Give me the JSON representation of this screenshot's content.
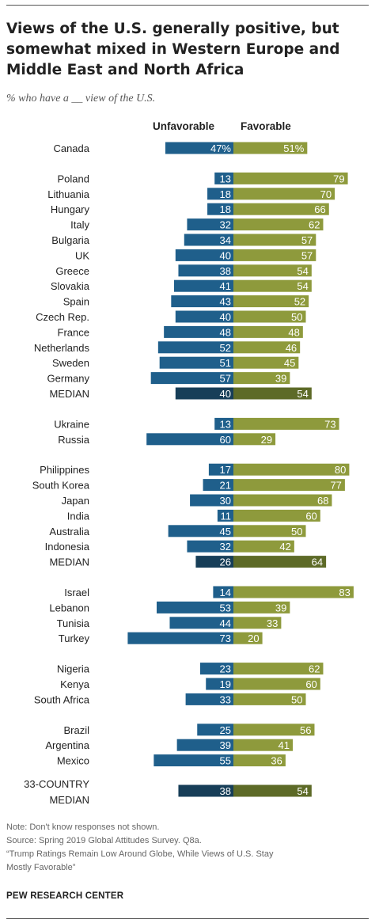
{
  "title": "Views of the U.S. generally positive, but somewhat mixed in Western Europe and Middle East and North Africa",
  "subtitle": "% who have a __ view of the U.S.",
  "legend": {
    "unfavorable": "Unfavorable",
    "favorable": "Favorable"
  },
  "colors": {
    "unfavorable": "#1f5f8b",
    "favorable": "#8e9a3c",
    "unfavorable_median": "#173e58",
    "favorable_median": "#5d6a27"
  },
  "chart_data": {
    "type": "bar",
    "orientation": "horizontal-diverging",
    "series": [
      {
        "name": "Unfavorable",
        "values": [
          47,
          13,
          18,
          18,
          32,
          34,
          40,
          38,
          41,
          43,
          40,
          48,
          52,
          51,
          57,
          40,
          13,
          60,
          17,
          21,
          30,
          11,
          45,
          32,
          26,
          14,
          53,
          44,
          73,
          23,
          19,
          33,
          25,
          39,
          55,
          38
        ]
      },
      {
        "name": "Favorable",
        "values": [
          51,
          79,
          70,
          66,
          62,
          57,
          57,
          54,
          54,
          52,
          50,
          48,
          46,
          45,
          39,
          54,
          73,
          29,
          80,
          77,
          68,
          60,
          50,
          42,
          64,
          83,
          39,
          33,
          20,
          62,
          60,
          50,
          56,
          41,
          36,
          54
        ]
      }
    ],
    "categories": [
      "Canada",
      "Poland",
      "Lithuania",
      "Hungary",
      "Italy",
      "Bulgaria",
      "UK",
      "Greece",
      "Slovakia",
      "Spain",
      "Czech Rep.",
      "France",
      "Netherlands",
      "Sweden",
      "Germany",
      "MEDIAN",
      "Ukraine",
      "Russia",
      "Philippines",
      "South Korea",
      "Japan",
      "India",
      "Australia",
      "Indonesia",
      "MEDIAN",
      "Israel",
      "Lebanon",
      "Tunisia",
      "Turkey",
      "Nigeria",
      "Kenya",
      "South Africa",
      "Brazil",
      "Argentina",
      "Mexico",
      "33-COUNTRY MEDIAN"
    ],
    "groups": [
      [
        "Canada"
      ],
      [
        "Poland",
        "Lithuania",
        "Hungary",
        "Italy",
        "Bulgaria",
        "UK",
        "Greece",
        "Slovakia",
        "Spain",
        "Czech Rep.",
        "France",
        "Netherlands",
        "Sweden",
        "Germany",
        "MEDIAN"
      ],
      [
        "Ukraine",
        "Russia"
      ],
      [
        "Philippines",
        "South Korea",
        "Japan",
        "India",
        "Australia",
        "Indonesia",
        "MEDIAN"
      ],
      [
        "Israel",
        "Lebanon",
        "Tunisia",
        "Turkey"
      ],
      [
        "Nigeria",
        "Kenya",
        "South Africa"
      ],
      [
        "Brazil",
        "Argentina",
        "Mexico"
      ],
      [
        "33-COUNTRY MEDIAN"
      ]
    ],
    "median_categories": [
      15,
      24,
      35
    ],
    "value_labels": {
      "unfavorable": [
        "47%",
        "13",
        "18",
        "18",
        "32",
        "34",
        "40",
        "38",
        "41",
        "43",
        "40",
        "48",
        "52",
        "51",
        "57",
        "40",
        "13",
        "60",
        "17",
        "21",
        "30",
        "11",
        "45",
        "32",
        "26",
        "14",
        "53",
        "44",
        "73",
        "23",
        "19",
        "33",
        "25",
        "39",
        "55",
        "38"
      ],
      "favorable": [
        "51%",
        "79",
        "70",
        "66",
        "62",
        "57",
        "57",
        "54",
        "54",
        "52",
        "50",
        "48",
        "46",
        "45",
        "39",
        "54",
        "73",
        "29",
        "80",
        "77",
        "68",
        "60",
        "50",
        "42",
        "64",
        "83",
        "39",
        "33",
        "20",
        "62",
        "60",
        "50",
        "56",
        "41",
        "36",
        "54"
      ]
    },
    "xlim": [
      -73,
      83
    ]
  },
  "notes": [
    "Note: Don't know responses not shown.",
    "Source: Spring 2019 Global Attitudes Survey. Q8a.",
    "“Trump Ratings Remain Low Around Globe, While Views of U.S. Stay",
    "Mostly Favorable”"
  ],
  "source": "PEW RESEARCH CENTER"
}
